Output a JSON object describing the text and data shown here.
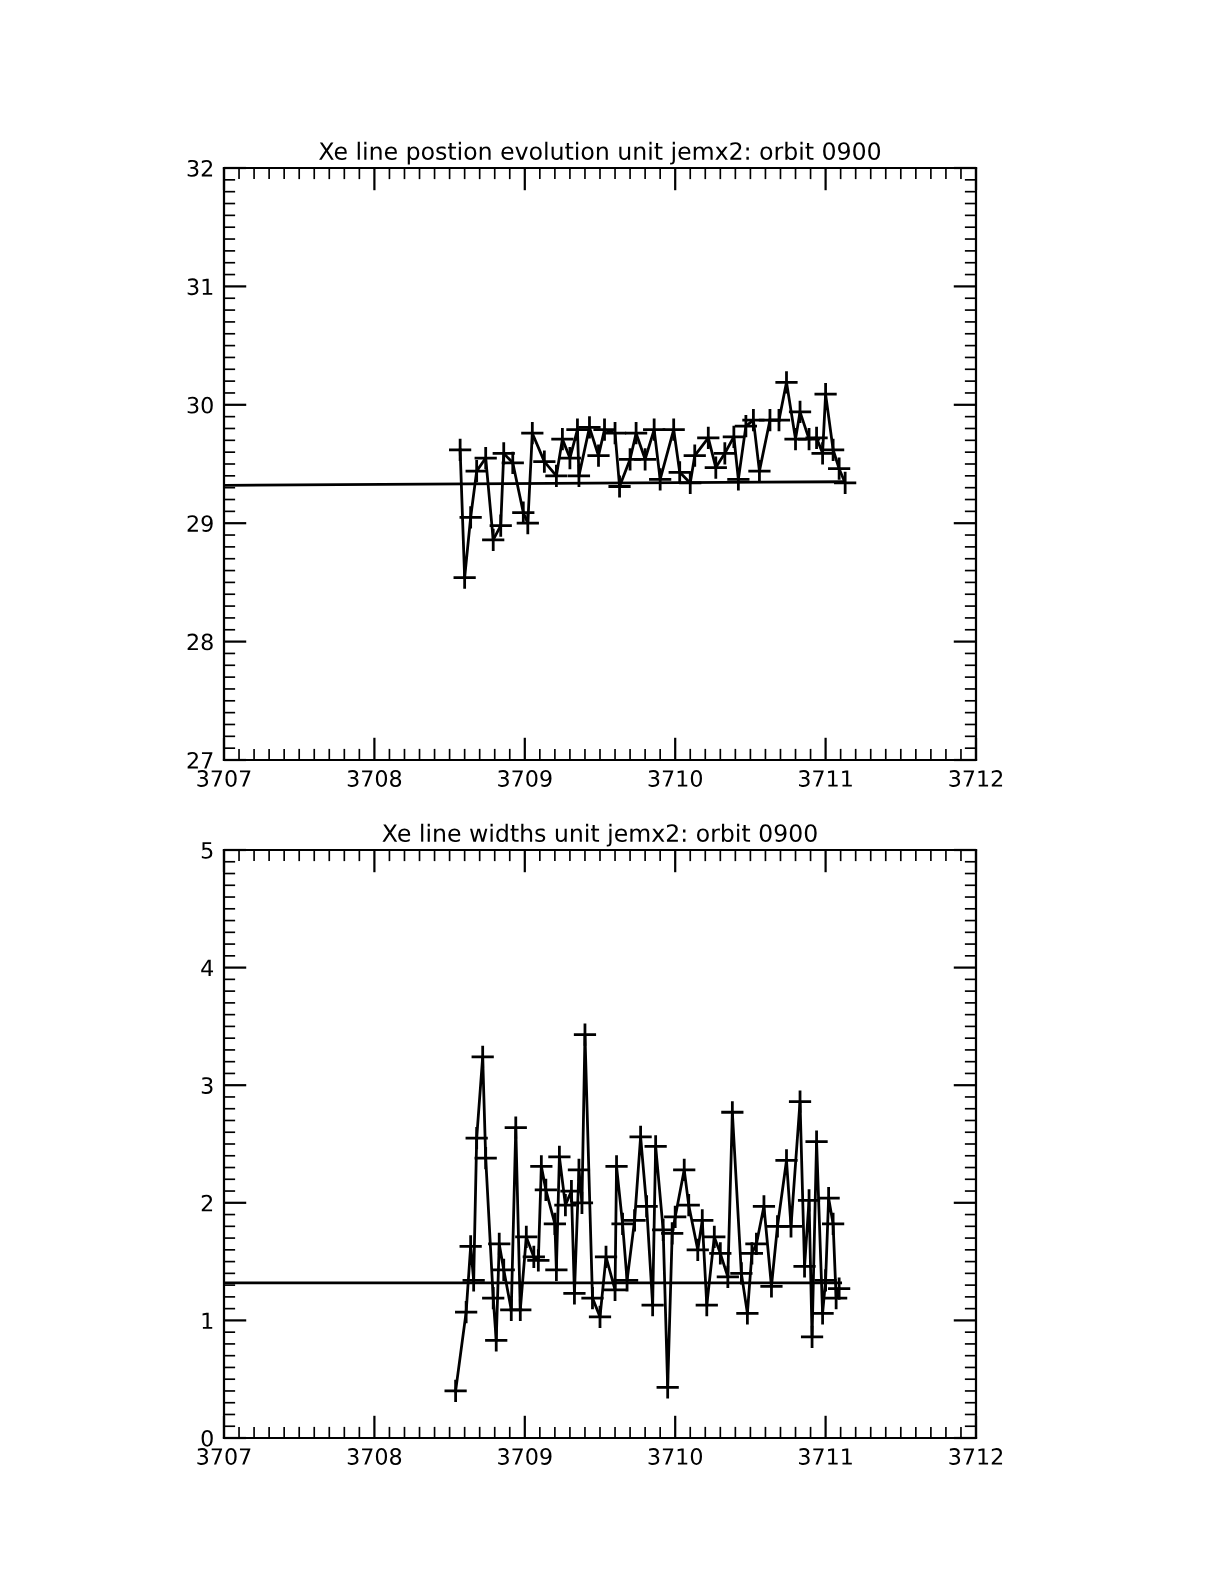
{
  "chart_data": [
    {
      "type": "line",
      "title": "Xe line postion evolution unit jemx2: orbit 0900",
      "xlim": [
        3707,
        3712
      ],
      "ylim": [
        27,
        32
      ],
      "xticks": [
        3707,
        3708,
        3709,
        3710,
        3711,
        3712
      ],
      "yticks": [
        27,
        28,
        29,
        30,
        31,
        32
      ],
      "grid": false,
      "series": [
        {
          "color": "#000000",
          "marker": "none",
          "x": [
            3707,
            3711.12
          ],
          "values": [
            29.32,
            29.35
          ]
        },
        {
          "color": "#000000",
          "marker": "cross",
          "x": [
            3708.57,
            3708.6,
            3708.64,
            3708.68,
            3708.74,
            3708.79,
            3708.84,
            3708.86,
            3708.92,
            3708.99,
            3709.02,
            3709.05,
            3709.13,
            3709.21,
            3709.25,
            3709.3,
            3709.35,
            3709.36,
            3709.43,
            3709.49,
            3709.53,
            3709.6,
            3709.63,
            3709.7,
            3709.74,
            3709.8,
            3709.86,
            3709.9,
            3709.99,
            3710.03,
            3710.1,
            3710.13,
            3710.22,
            3710.27,
            3710.33,
            3710.39,
            3710.42,
            3710.47,
            3710.52,
            3710.56,
            3710.63,
            3710.69,
            3710.74,
            3710.8,
            3710.83,
            3710.89,
            3710.94,
            3710.98,
            3711.0,
            3711.05,
            3711.09,
            3711.13
          ],
          "values": [
            29.62,
            28.54,
            29.05,
            29.44,
            29.55,
            28.86,
            28.98,
            29.59,
            29.51,
            29.09,
            29.0,
            29.76,
            29.52,
            29.4,
            29.71,
            29.55,
            29.79,
            29.4,
            29.81,
            29.57,
            29.79,
            29.76,
            29.31,
            29.54,
            29.76,
            29.54,
            29.79,
            29.37,
            29.79,
            29.43,
            29.34,
            29.57,
            29.72,
            29.47,
            29.59,
            29.73,
            29.37,
            29.82,
            29.87,
            29.44,
            29.87,
            29.87,
            30.19,
            29.71,
            29.94,
            29.71,
            29.72,
            29.59,
            30.09,
            29.62,
            29.46,
            29.34
          ]
        }
      ]
    },
    {
      "type": "line",
      "title": "Xe line widths unit jemx2: orbit 0900",
      "xlim": [
        3707,
        3712
      ],
      "ylim": [
        0,
        5
      ],
      "xticks": [
        3707,
        3708,
        3709,
        3710,
        3711,
        3712
      ],
      "yticks": [
        0,
        1,
        2,
        3,
        4,
        5
      ],
      "grid": false,
      "series": [
        {
          "color": "#000000",
          "marker": "none",
          "x": [
            3707,
            3711.1
          ],
          "values": [
            1.32,
            1.32
          ]
        },
        {
          "color": "#000000",
          "marker": "cross",
          "x": [
            3708.54,
            3708.61,
            3708.64,
            3708.66,
            3708.68,
            3708.72,
            3708.74,
            3708.79,
            3708.81,
            3708.83,
            3708.86,
            3708.91,
            3708.94,
            3708.97,
            3709.01,
            3709.06,
            3709.09,
            3709.11,
            3709.14,
            3709.2,
            3709.21,
            3709.23,
            3709.27,
            3709.31,
            3709.33,
            3709.36,
            3709.38,
            3709.4,
            3709.45,
            3709.5,
            3709.54,
            3709.6,
            3709.61,
            3709.65,
            3709.68,
            3709.73,
            3709.77,
            3709.81,
            3709.85,
            3709.87,
            3709.92,
            3709.95,
            3709.98,
            3710.0,
            3710.06,
            3710.09,
            3710.15,
            3710.18,
            3710.21,
            3710.26,
            3710.3,
            3710.35,
            3710.38,
            3710.44,
            3710.48,
            3710.51,
            3710.54,
            3710.59,
            3710.64,
            3710.68,
            3710.74,
            3710.77,
            3710.83,
            3710.86,
            3710.89,
            3710.91,
            3710.94,
            3710.98,
            3711.0,
            3711.02,
            3711.05,
            3711.07,
            3711.09
          ],
          "values": [
            0.4,
            1.07,
            1.63,
            1.34,
            2.55,
            3.24,
            2.38,
            1.19,
            0.83,
            1.65,
            1.43,
            1.09,
            2.64,
            1.09,
            1.71,
            1.54,
            1.51,
            2.31,
            2.11,
            1.82,
            1.43,
            2.39,
            1.98,
            2.1,
            1.23,
            2.28,
            2.0,
            3.43,
            1.19,
            1.03,
            1.54,
            1.26,
            2.31,
            1.82,
            1.34,
            1.85,
            2.56,
            1.97,
            1.13,
            2.48,
            1.77,
            0.43,
            1.74,
            1.88,
            2.28,
            1.98,
            1.6,
            1.85,
            1.13,
            1.71,
            1.57,
            1.37,
            2.77,
            1.4,
            1.06,
            1.57,
            1.65,
            1.97,
            1.29,
            1.8,
            2.36,
            1.8,
            2.86,
            1.46,
            2.02,
            0.86,
            2.52,
            1.06,
            1.34,
            2.04,
            1.82,
            1.19,
            1.27
          ]
        }
      ]
    }
  ]
}
